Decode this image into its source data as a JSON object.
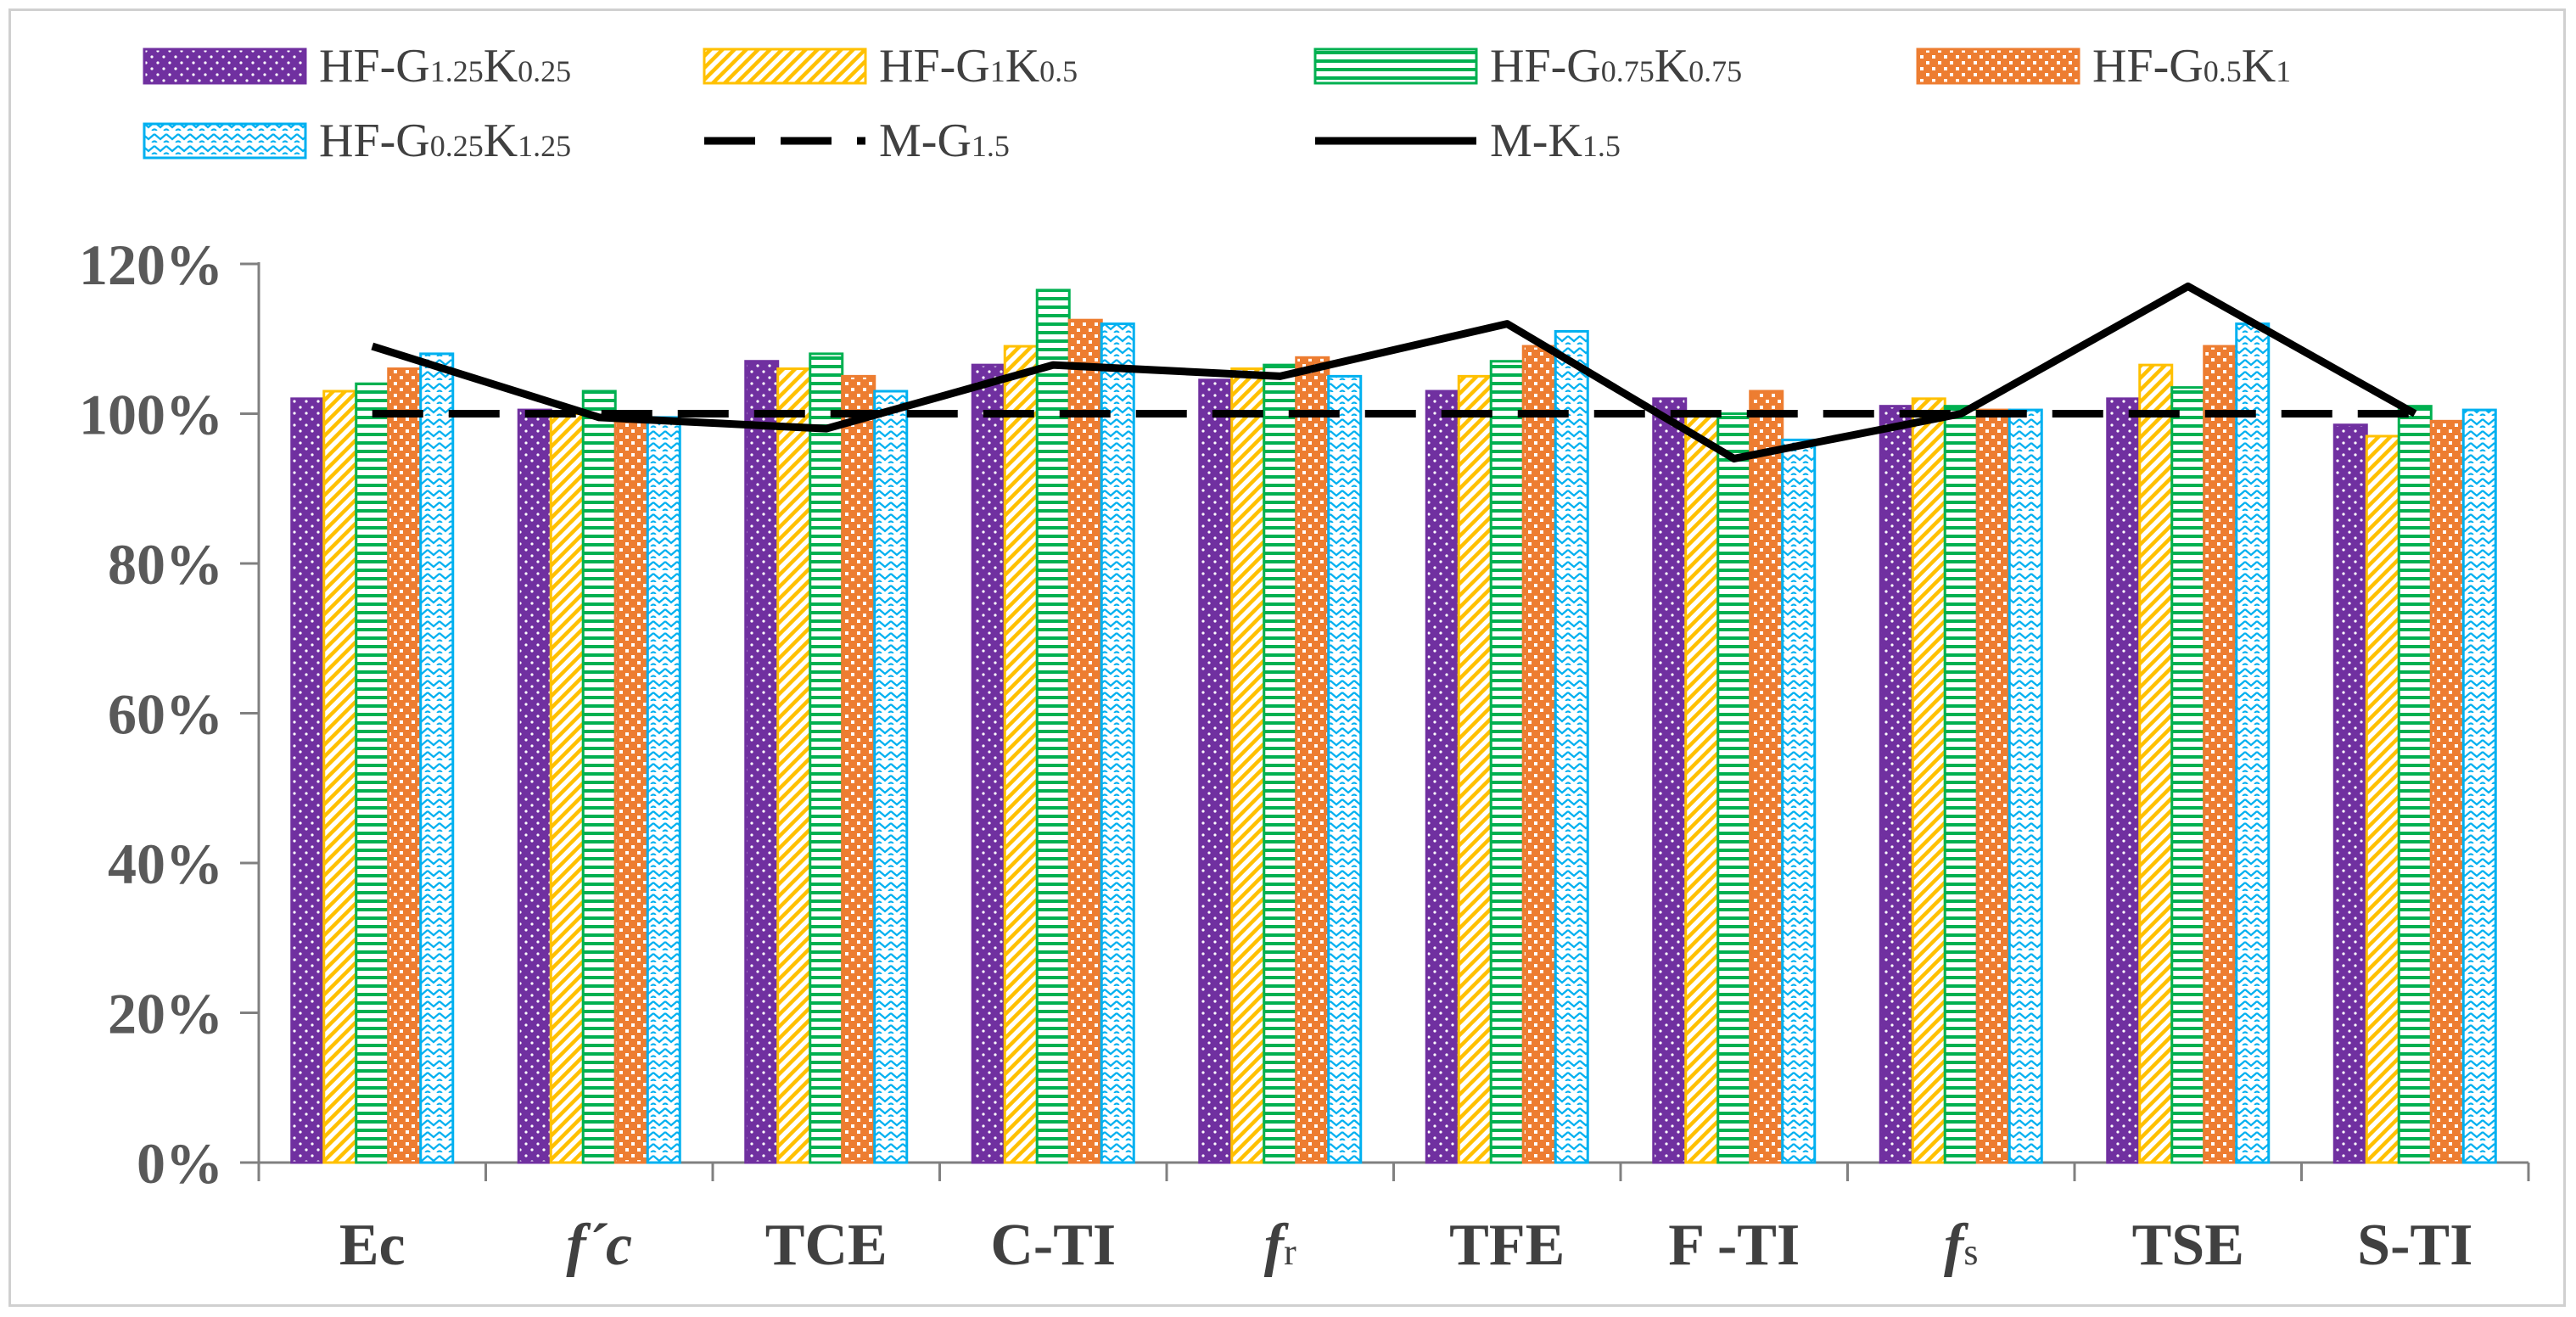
{
  "chart_data": {
    "type": "bar",
    "title": "",
    "xlabel": "",
    "ylabel": "",
    "ylim": [
      0,
      120
    ],
    "yticks": [
      "0%",
      "20%",
      "40%",
      "60%",
      "80%",
      "100%",
      "120%"
    ],
    "grid": false,
    "legend_position": "top",
    "categories": [
      {
        "main": "Ec",
        "italic": false,
        "sub": ""
      },
      {
        "main": "f´c",
        "italic": true,
        "sub": ""
      },
      {
        "main": "TCE",
        "italic": false,
        "sub": ""
      },
      {
        "main": "C-TI",
        "italic": false,
        "sub": ""
      },
      {
        "main": "f",
        "italic": true,
        "sub": "r"
      },
      {
        "main": "TFE",
        "italic": false,
        "sub": ""
      },
      {
        "main": "F -TI",
        "italic": false,
        "sub": ""
      },
      {
        "main": "f",
        "italic": true,
        "sub": "s"
      },
      {
        "main": "TSE",
        "italic": false,
        "sub": ""
      },
      {
        "main": "S-TI",
        "italic": false,
        "sub": ""
      }
    ],
    "series": [
      {
        "name": "HF-G1.25K0.25",
        "label_parts": [
          [
            "HF-G",
            ""
          ],
          [
            "1.25",
            "s"
          ],
          [
            "K",
            ""
          ],
          [
            "0.25",
            "s"
          ]
        ],
        "kind": "bar",
        "pattern": "dots",
        "color": "#7030A0",
        "values": [
          102,
          100.5,
          107,
          106.5,
          104.5,
          103,
          102,
          101,
          102,
          98.5
        ]
      },
      {
        "name": "HF-G1K0.5",
        "label_parts": [
          [
            "HF-G",
            ""
          ],
          [
            "1",
            "s"
          ],
          [
            "K",
            ""
          ],
          [
            "0.5",
            "s"
          ]
        ],
        "kind": "bar",
        "pattern": "diag",
        "color": "#FFC000",
        "values": [
          103,
          100,
          106,
          109,
          106,
          105,
          100,
          102,
          106.5,
          97
        ]
      },
      {
        "name": "HF-G0.75K0.75",
        "label_parts": [
          [
            "HF-G",
            ""
          ],
          [
            "0.75",
            "s"
          ],
          [
            "K",
            ""
          ],
          [
            "0.75",
            "s"
          ]
        ],
        "kind": "bar",
        "pattern": "horiz",
        "color": "#00B050",
        "values": [
          104,
          103,
          108,
          116.5,
          106.5,
          107,
          100,
          101,
          103.5,
          101
        ]
      },
      {
        "name": "HF-G0.5K1",
        "label_parts": [
          [
            "HF-G",
            ""
          ],
          [
            "0.5",
            "s"
          ],
          [
            "K",
            ""
          ],
          [
            "1",
            "s"
          ]
        ],
        "kind": "bar",
        "pattern": "check",
        "color": "#ED7D31",
        "values": [
          106,
          100,
          105,
          112.5,
          107.5,
          109,
          103,
          100.5,
          109,
          99
        ]
      },
      {
        "name": "HF-G0.25K1.25",
        "label_parts": [
          [
            "HF-G",
            ""
          ],
          [
            "0.25",
            "s"
          ],
          [
            "K",
            ""
          ],
          [
            "1.25",
            "s"
          ]
        ],
        "kind": "bar",
        "pattern": "zigzag",
        "color": "#00B0F0",
        "values": [
          108,
          99.5,
          103,
          112,
          105,
          111,
          96.5,
          100.5,
          112,
          100.5
        ]
      },
      {
        "name": "M-G1.5",
        "label_parts": [
          [
            "M-G",
            ""
          ],
          [
            "1.5",
            "s"
          ]
        ],
        "kind": "line",
        "dash": "dashed",
        "color": "#000000",
        "values": [
          100,
          100,
          100,
          100,
          100,
          100,
          100,
          100,
          100,
          100
        ]
      },
      {
        "name": "M-K1.5",
        "label_parts": [
          [
            "M-K",
            ""
          ],
          [
            "1.5",
            "s"
          ]
        ],
        "kind": "line",
        "dash": "solid",
        "color": "#000000",
        "values": [
          109,
          99.5,
          98,
          106.5,
          105,
          112,
          94,
          100,
          117,
          100
        ]
      }
    ]
  }
}
